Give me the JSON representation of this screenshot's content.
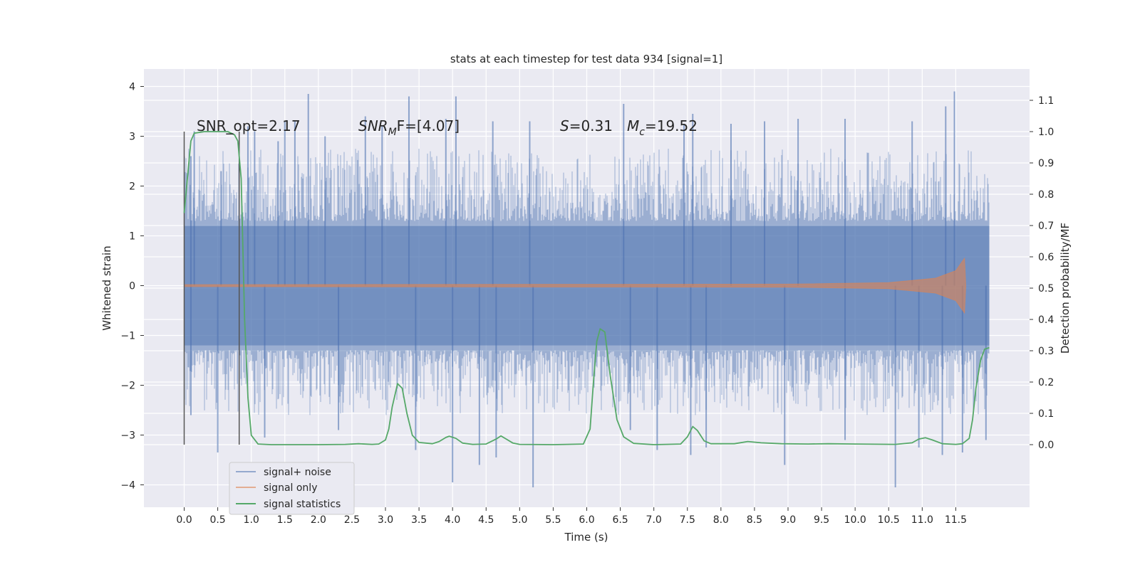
{
  "chart_data": {
    "type": "line",
    "title": "stats at each timestep for test data 934 [signal=1]",
    "xlabel": "Time (s)",
    "ylabel_left": "Whitened strain",
    "ylabel_right": "Detection probability/MF",
    "xlim": [
      -0.6,
      12.6
    ],
    "ylim_left": [
      -4.45,
      4.35
    ],
    "ylim_right": [
      -0.2,
      1.2
    ],
    "x_ticks": [
      "0.0",
      "0.5",
      "1.0",
      "1.5",
      "2.0",
      "2.5",
      "3.0",
      "3.5",
      "4.0",
      "4.5",
      "5.0",
      "5.5",
      "6.0",
      "6.5",
      "7.0",
      "7.5",
      "8.0",
      "8.5",
      "9.0",
      "9.5",
      "10.0",
      "10.5",
      "11.0",
      "11.5"
    ],
    "y_left_ticks": [
      "4",
      "3",
      "2",
      "1",
      "0",
      "−1",
      "−2",
      "−3",
      "−4"
    ],
    "y_right_ticks": [
      "1.1",
      "1.0",
      "0.9",
      "0.8",
      "0.7",
      "0.6",
      "0.5",
      "0.4",
      "0.3",
      "0.2",
      "0.1",
      "0.0"
    ],
    "grid": true,
    "legend_position": "bottom-left",
    "colors": {
      "background": "#eaeaf2",
      "grid": "#ffffff",
      "signal_noise": "#4c72b0",
      "signal_only": "#dd8452",
      "statistics": "#55a868",
      "marker": "#555555"
    },
    "annotations": {
      "snr_opt": "SNR_opt=2.17",
      "snr_mf_label": "SNR",
      "snr_mf_sub": "M",
      "snr_mf_value": "F=[4.07]",
      "s_label": "S",
      "s_value": "=0.31",
      "mc_label": "M",
      "mc_sub": "c",
      "mc_value": "=19.52"
    },
    "vertical_markers": [
      0.0,
      0.82
    ],
    "series": [
      {
        "name": "signal+ noise",
        "type": "noise-band",
        "x_range": [
          0.0,
          12.0
        ],
        "core_range": [
          -1.2,
          1.2
        ],
        "upper_peaks": [
          [
            0.1,
            2.6
          ],
          [
            0.15,
            3.1
          ],
          [
            0.55,
            2.3
          ],
          [
            0.95,
            3.2
          ],
          [
            1.05,
            3.1
          ],
          [
            1.4,
            2.9
          ],
          [
            1.5,
            3.3
          ],
          [
            1.65,
            3.3
          ],
          [
            1.85,
            3.85
          ],
          [
            2.1,
            3.0
          ],
          [
            2.7,
            3.4
          ],
          [
            2.95,
            3.2
          ],
          [
            3.35,
            3.8
          ],
          [
            3.9,
            3.35
          ],
          [
            4.05,
            3.8
          ],
          [
            4.6,
            3.3
          ],
          [
            5.15,
            3.3
          ],
          [
            6.55,
            3.65
          ],
          [
            7.45,
            3.25
          ],
          [
            7.58,
            3.45
          ],
          [
            8.15,
            3.25
          ],
          [
            8.65,
            3.3
          ],
          [
            9.15,
            3.35
          ],
          [
            9.85,
            3.35
          ],
          [
            10.85,
            3.3
          ],
          [
            11.35,
            3.6
          ],
          [
            11.48,
            3.9
          ]
        ],
        "lower_peaks": [
          [
            0.1,
            -2.6
          ],
          [
            0.5,
            -3.35
          ],
          [
            1.2,
            -3.05
          ],
          [
            2.3,
            -2.9
          ],
          [
            3.45,
            -3.3
          ],
          [
            4.0,
            -3.95
          ],
          [
            4.4,
            -3.6
          ],
          [
            4.65,
            -3.45
          ],
          [
            5.2,
            -4.05
          ],
          [
            6.65,
            -2.9
          ],
          [
            7.05,
            -3.3
          ],
          [
            7.55,
            -3.4
          ],
          [
            7.78,
            -3.25
          ],
          [
            8.95,
            -3.6
          ],
          [
            9.85,
            -3.1
          ],
          [
            10.6,
            -4.05
          ],
          [
            10.95,
            -3.25
          ],
          [
            11.3,
            -3.4
          ],
          [
            11.6,
            -3.35
          ],
          [
            11.95,
            -3.1
          ]
        ]
      },
      {
        "name": "signal only",
        "type": "chirp",
        "x_range": [
          0.0,
          11.65
        ],
        "amplitude_points": [
          [
            0.0,
            0.02
          ],
          [
            9.0,
            0.03
          ],
          [
            10.5,
            0.06
          ],
          [
            11.2,
            0.15
          ],
          [
            11.5,
            0.3
          ],
          [
            11.63,
            0.55
          ],
          [
            11.65,
            0.0
          ]
        ]
      },
      {
        "name": "signal statistics",
        "type": "line",
        "axis": "right",
        "points": [
          [
            0.0,
            0.74
          ],
          [
            0.1,
            0.97
          ],
          [
            0.15,
            0.995
          ],
          [
            0.3,
            1.0
          ],
          [
            0.5,
            1.0
          ],
          [
            0.65,
            1.0
          ],
          [
            0.75,
            0.99
          ],
          [
            0.8,
            0.97
          ],
          [
            0.85,
            0.85
          ],
          [
            0.9,
            0.4
          ],
          [
            0.95,
            0.15
          ],
          [
            1.0,
            0.03
          ],
          [
            1.1,
            0.002
          ],
          [
            1.3,
            0.0
          ],
          [
            2.0,
            0.0
          ],
          [
            2.4,
            0.001
          ],
          [
            2.6,
            0.003
          ],
          [
            2.8,
            0.001
          ],
          [
            2.9,
            0.002
          ],
          [
            3.0,
            0.015
          ],
          [
            3.05,
            0.05
          ],
          [
            3.1,
            0.12
          ],
          [
            3.18,
            0.195
          ],
          [
            3.25,
            0.18
          ],
          [
            3.32,
            0.1
          ],
          [
            3.4,
            0.03
          ],
          [
            3.5,
            0.007
          ],
          [
            3.7,
            0.003
          ],
          [
            3.8,
            0.01
          ],
          [
            3.9,
            0.023
          ],
          [
            3.95,
            0.027
          ],
          [
            4.05,
            0.02
          ],
          [
            4.15,
            0.005
          ],
          [
            4.3,
            0.001
          ],
          [
            4.5,
            0.002
          ],
          [
            4.65,
            0.018
          ],
          [
            4.72,
            0.028
          ],
          [
            4.8,
            0.018
          ],
          [
            4.9,
            0.005
          ],
          [
            5.0,
            0.001
          ],
          [
            5.5,
            0.0
          ],
          [
            5.95,
            0.002
          ],
          [
            6.05,
            0.05
          ],
          [
            6.1,
            0.2
          ],
          [
            6.15,
            0.33
          ],
          [
            6.2,
            0.37
          ],
          [
            6.27,
            0.36
          ],
          [
            6.35,
            0.22
          ],
          [
            6.45,
            0.08
          ],
          [
            6.55,
            0.025
          ],
          [
            6.7,
            0.004
          ],
          [
            7.0,
            0.0
          ],
          [
            7.4,
            0.002
          ],
          [
            7.5,
            0.025
          ],
          [
            7.58,
            0.058
          ],
          [
            7.65,
            0.045
          ],
          [
            7.75,
            0.012
          ],
          [
            7.85,
            0.003
          ],
          [
            8.2,
            0.003
          ],
          [
            8.4,
            0.01
          ],
          [
            8.6,
            0.006
          ],
          [
            8.9,
            0.003
          ],
          [
            9.3,
            0.002
          ],
          [
            9.6,
            0.003
          ],
          [
            10.0,
            0.002
          ],
          [
            10.6,
            0.001
          ],
          [
            10.85,
            0.006
          ],
          [
            10.95,
            0.018
          ],
          [
            11.05,
            0.022
          ],
          [
            11.15,
            0.015
          ],
          [
            11.3,
            0.003
          ],
          [
            11.5,
            0.001
          ],
          [
            11.6,
            0.003
          ],
          [
            11.7,
            0.02
          ],
          [
            11.75,
            0.08
          ],
          [
            11.8,
            0.18
          ],
          [
            11.87,
            0.27
          ],
          [
            11.93,
            0.305
          ],
          [
            12.0,
            0.31
          ]
        ]
      }
    ]
  }
}
